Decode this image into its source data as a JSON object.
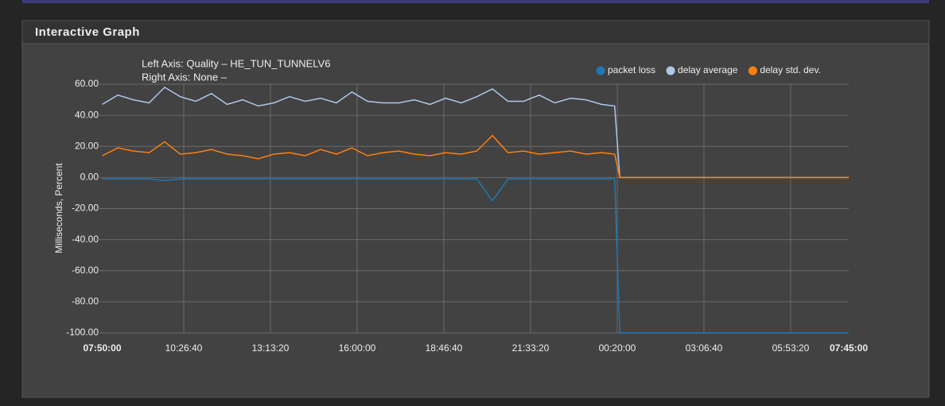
{
  "panel_title": "Interactive Graph",
  "chart_data": {
    "type": "line",
    "annotations": [
      "Left Axis: Quality – HE_TUN_TUNNELV6",
      "Right Axis: None –"
    ],
    "ylabel": "Milliseconds, Percent",
    "x": [
      "07:50:00",
      "08:20:00",
      "08:50:00",
      "09:20:00",
      "09:50:00",
      "10:20:00",
      "10:50:00",
      "11:20:00",
      "11:50:00",
      "12:20:00",
      "12:50:00",
      "13:20:00",
      "13:50:00",
      "14:20:00",
      "14:50:00",
      "15:20:00",
      "15:50:00",
      "16:20:00",
      "16:50:00",
      "17:20:00",
      "17:50:00",
      "18:20:00",
      "18:50:00",
      "19:20:00",
      "19:50:00",
      "20:20:00",
      "20:50:00",
      "21:20:00",
      "21:50:00",
      "22:20:00",
      "22:50:00",
      "23:20:00",
      "23:50:00",
      "00:15:00",
      "00:25:00",
      "07:45:00"
    ],
    "series": [
      {
        "name": "packet loss",
        "color": "#1f77b4",
        "values": [
          -1,
          -1,
          -1,
          -1,
          -2,
          -1,
          -1,
          -1,
          -1,
          -1,
          -1,
          -1,
          -1,
          -1,
          -1,
          -1,
          -1,
          -1,
          -1,
          -1,
          -1,
          -1,
          -1,
          -1,
          -1,
          -15,
          -1,
          -1,
          -1,
          -1,
          -1,
          -1,
          -1,
          -1,
          -100,
          -100
        ]
      },
      {
        "name": "delay average",
        "color": "#aec7e8",
        "values": [
          47,
          53,
          50,
          48,
          58,
          52,
          49,
          54,
          47,
          50,
          46,
          48,
          52,
          49,
          51,
          48,
          55,
          49,
          48,
          48,
          50,
          47,
          51,
          48,
          52,
          57,
          49,
          49,
          53,
          48,
          51,
          50,
          47,
          46,
          0,
          0
        ]
      },
      {
        "name": "delay std. dev.",
        "color": "#ff7f0e",
        "values": [
          14,
          19,
          17,
          16,
          23,
          15,
          16,
          18,
          15,
          14,
          12,
          15,
          16,
          14,
          18,
          15,
          19,
          14,
          16,
          17,
          15,
          14,
          16,
          15,
          17,
          27,
          16,
          17,
          15,
          16,
          17,
          15,
          16,
          15,
          0,
          0
        ]
      }
    ],
    "xlim": [
      "07:50:00",
      "07:45:00"
    ],
    "xticks": [
      "07:50:00",
      "10:26:40",
      "13:13:20",
      "16:00:00",
      "18:46:40",
      "21:33:20",
      "00:20:00",
      "03:06:40",
      "05:53:20",
      "07:45:00"
    ],
    "ylim": [
      -100,
      60
    ],
    "yticks": [
      {
        "value": 60,
        "label": "60.00"
      },
      {
        "value": 40,
        "label": "40.00"
      },
      {
        "value": 20,
        "label": "20.00"
      },
      {
        "value": 0,
        "label": "0.00"
      },
      {
        "value": -20,
        "label": "-20.00"
      },
      {
        "value": -40,
        "label": "-40.00"
      },
      {
        "value": -60,
        "label": "-60.00"
      },
      {
        "value": -80,
        "label": "-80.00"
      },
      {
        "value": -100,
        "label": "-100.00"
      }
    ],
    "grid": true,
    "legend": "top-right"
  }
}
